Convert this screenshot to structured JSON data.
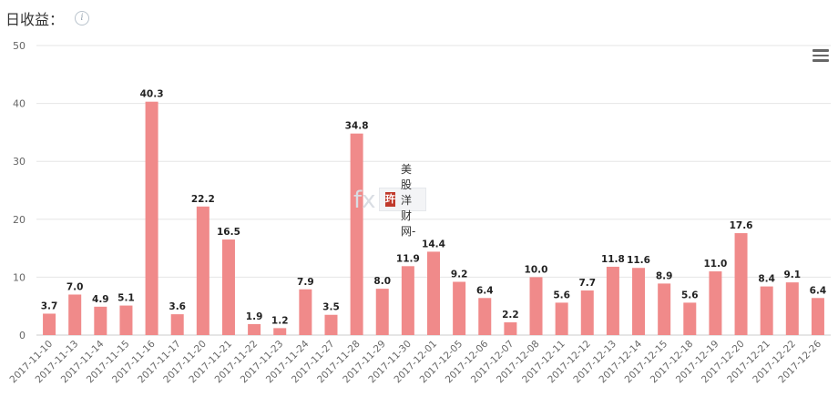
{
  "header": {
    "title": "日收益：",
    "info_icon": "info-icon"
  },
  "toolbar": {
    "menu_icon": "hamburger-menu-icon"
  },
  "watermark": {
    "text": "美股洋财网-",
    "logo": "玝"
  },
  "colors": {
    "bar": "#f08a8a",
    "grid": "#e6e6e6",
    "axis_text": "#666666",
    "label": "#222222"
  },
  "chart_data": {
    "type": "bar",
    "title": "日收益：",
    "xlabel": "",
    "ylabel": "",
    "ylim": [
      0,
      50
    ],
    "yticks": [
      0,
      10,
      20,
      30,
      40,
      50
    ],
    "grid": true,
    "categories": [
      "2017-11-10",
      "2017-11-13",
      "2017-11-14",
      "2017-11-15",
      "2017-11-16",
      "2017-11-17",
      "2017-11-20",
      "2017-11-21",
      "2017-11-22",
      "2017-11-23",
      "2017-11-24",
      "2017-11-27",
      "2017-11-28",
      "2017-11-29",
      "2017-11-30",
      "2017-12-01",
      "2017-12-05",
      "2017-12-06",
      "2017-12-07",
      "2017-12-08",
      "2017-12-11",
      "2017-12-12",
      "2017-12-13",
      "2017-12-14",
      "2017-12-15",
      "2017-12-18",
      "2017-12-19",
      "2017-12-20",
      "2017-12-21",
      "2017-12-22",
      "2017-12-26"
    ],
    "values": [
      3.7,
      7.0,
      4.9,
      5.1,
      40.3,
      3.6,
      22.2,
      16.5,
      1.9,
      1.2,
      7.9,
      3.5,
      34.8,
      8.0,
      11.9,
      14.4,
      9.2,
      6.4,
      2.2,
      10.0,
      5.6,
      7.7,
      11.8,
      11.6,
      8.9,
      5.6,
      11.0,
      17.6,
      8.4,
      9.1,
      6.4
    ],
    "value_labels": [
      "3.7",
      "7.0",
      "4.9",
      "5.1",
      "40.3",
      "3.6",
      "22.2",
      "16.5",
      "1.9",
      "1.2",
      "7.9",
      "3.5",
      "34.8",
      "8.0",
      "11.9",
      "14.4",
      "9.2",
      "6.4",
      "2.2",
      "10.0",
      "5.6",
      "7.7",
      "11.8",
      "11.6",
      "8.9",
      "5.6",
      "11.0",
      "17.6",
      "8.4",
      "9.1",
      "6.4"
    ]
  }
}
